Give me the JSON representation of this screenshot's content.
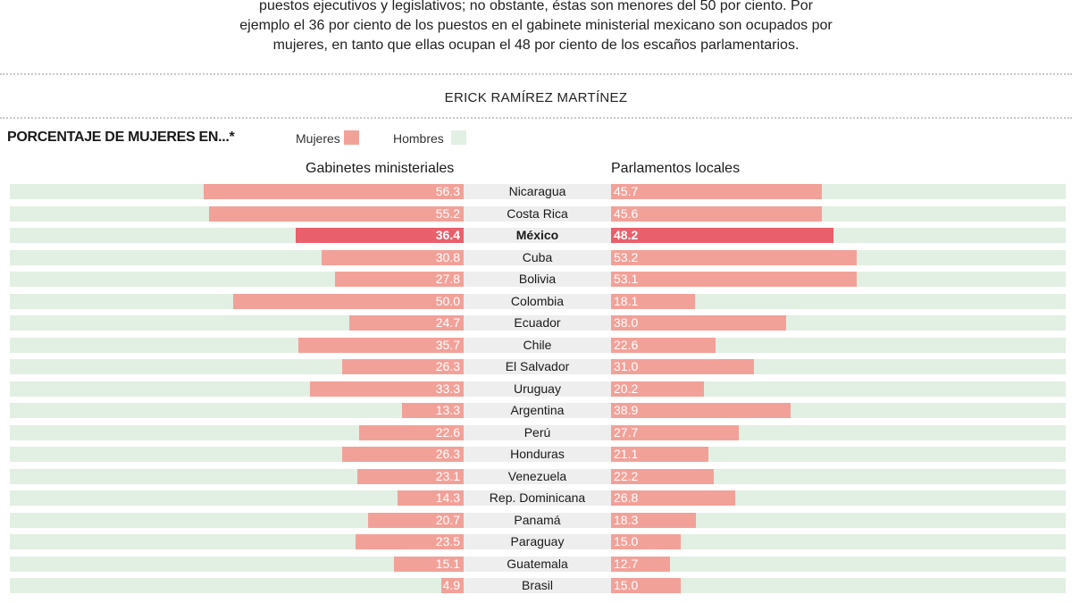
{
  "intro": {
    "line1": "puestos ejecutivos y legislativos; no obstante, éstas son menores del 50 por ciento. Por",
    "line2": "ejemplo el 36 por ciento de los puestos en el gabinete ministerial mexicano son ocupados por",
    "line3": "mujeres, en tanto que ellas ocupan el 48 por ciento de los escaños parlamentarios."
  },
  "byline": "ERICK RAMÍREZ MARTÍNEZ",
  "legend": {
    "women": "Mujeres",
    "men": "Hombres"
  },
  "colors": {
    "women": "#f2a199",
    "women_highlight": "#e95f6b",
    "men": "#e2efe3",
    "center": "#eeeeee"
  },
  "chart_data": {
    "type": "bar",
    "title": "PORCENTAJE DE MUJERES EN...*",
    "orientation": "horizontal-diverging",
    "xlim": [
      0,
      100
    ],
    "highlight": "México",
    "categories": [
      "Nicaragua",
      "Costa Rica",
      "México",
      "Cuba",
      "Bolivia",
      "Colombia",
      "Ecuador",
      "Chile",
      "El Salvador",
      "Uruguay",
      "Argentina",
      "Perú",
      "Honduras",
      "Venezuela",
      "Rep. Dominicana",
      "Panamá",
      "Paraguay",
      "Guatemala",
      "Brasil"
    ],
    "series": [
      {
        "name": "Gabinetes ministeriales",
        "values": [
          56.3,
          55.2,
          36.4,
          30.8,
          27.8,
          50.0,
          24.7,
          35.7,
          26.3,
          33.3,
          13.3,
          22.6,
          26.3,
          23.1,
          14.3,
          20.7,
          23.5,
          15.1,
          4.9
        ],
        "labels": [
          "56.3",
          "55.2",
          "36.4",
          "30.8",
          "27.8",
          "50.0",
          "24.7",
          "35.7",
          "26.3",
          "33.3",
          "13.3",
          "22.6",
          "26.3",
          "23.1",
          "14.3",
          "20.7",
          "23.5",
          "15.1",
          "4.9"
        ]
      },
      {
        "name": "Parlamentos locales",
        "values": [
          45.7,
          45.6,
          48.2,
          53.2,
          53.1,
          18.1,
          38.0,
          22.6,
          31.0,
          20.2,
          38.9,
          27.7,
          21.1,
          22.2,
          26.8,
          18.3,
          15.0,
          12.7,
          15.0
        ],
        "labels": [
          "45.7",
          "45.6",
          "48.2",
          "53.2",
          "53.1",
          "18.1",
          "38.0",
          "22.6",
          "31.0",
          "20.2",
          "38.9",
          "27.7",
          "21.1",
          "22.2",
          "26.8",
          "18.3",
          "15.0",
          "12.7",
          "15.0"
        ]
      }
    ]
  }
}
